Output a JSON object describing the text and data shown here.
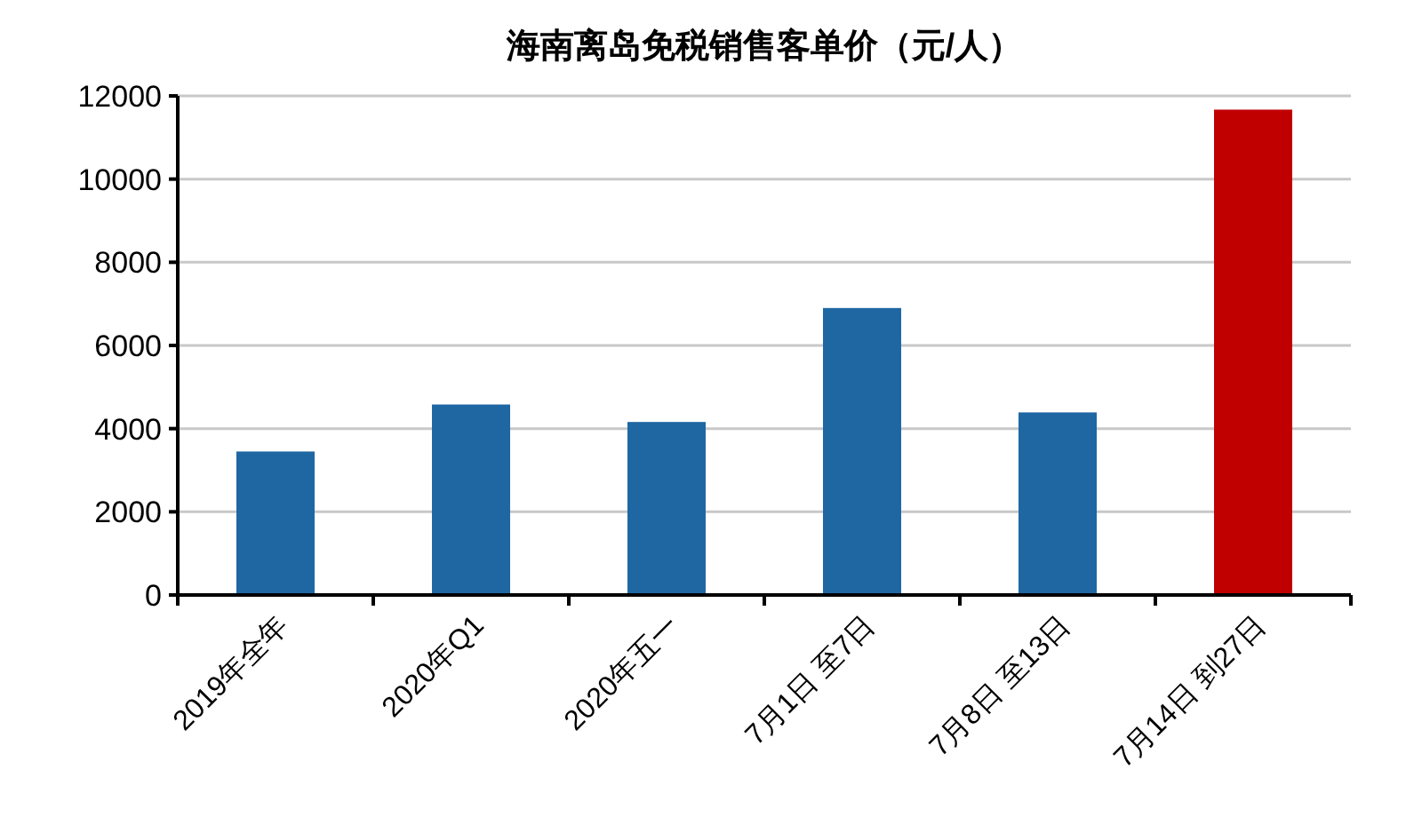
{
  "chart_data": {
    "type": "bar",
    "title": "海南离岛免税销售客单价（元/人）",
    "categories": [
      "2019年全年",
      "2020年Q1",
      "2020年五一",
      "7月1日 至7日",
      "7月8日 至13日",
      "7月14日 到27日"
    ],
    "values": [
      3450,
      4580,
      4160,
      6900,
      4390,
      11670
    ],
    "colors": [
      "#1f67a3",
      "#1f67a3",
      "#1f67a3",
      "#1f67a3",
      "#1f67a3",
      "#c00000"
    ],
    "ylim": [
      0,
      12000
    ],
    "yticks": [
      0,
      2000,
      4000,
      6000,
      8000,
      10000,
      12000
    ],
    "grid": "y"
  }
}
